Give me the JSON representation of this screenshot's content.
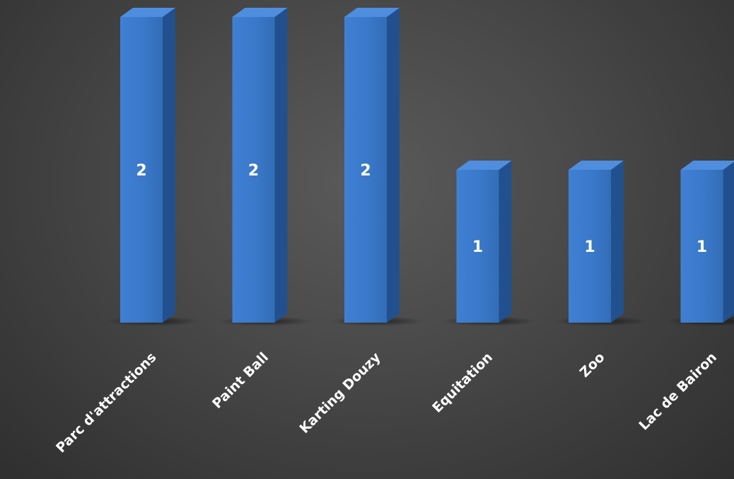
{
  "chart_data": {
    "type": "bar",
    "categories": [
      "Parc d'attractions",
      "Paint Ball",
      "Karting Douzy",
      "Equitation",
      "Zoo",
      "Lac de Bairon"
    ],
    "values": [
      2,
      2,
      2,
      1,
      1,
      1
    ],
    "title": "",
    "xlabel": "",
    "ylabel": "",
    "ylim": [
      0,
      2
    ],
    "grid": false,
    "legend": "none",
    "colors": {
      "bar_front": "#3a79cc",
      "bar_side": "#22508f",
      "bar_top": "#4f8ede",
      "label": "#ffffff"
    }
  }
}
